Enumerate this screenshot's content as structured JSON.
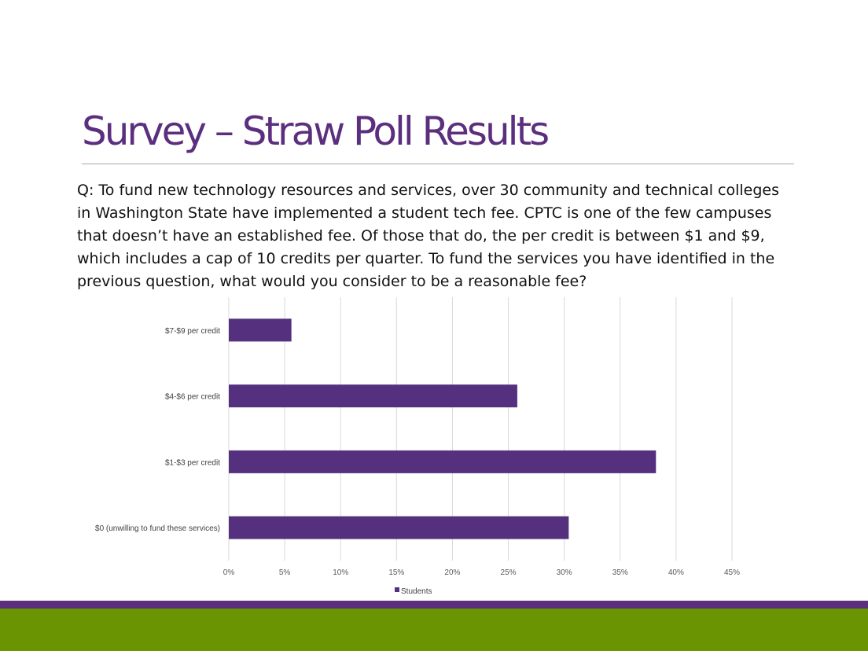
{
  "slide": {
    "title": "Survey – Straw Poll Results",
    "question": "Q: To fund new technology resources and services, over 30 community and technical colleges in Washington State have implemented a student tech fee. CPTC is one of the few campuses that doesn’t have an established fee. Of those that do, the per credit is between $1 and $9, which includes a cap of 10 credits per quarter. To fund the services you have identified in the previous question, what would you consider to be a reasonable fee?"
  },
  "colors": {
    "title": "#5b2f7e",
    "bar": "#54307f",
    "band_top": "#5b2f7e",
    "band_bottom": "#6b9402",
    "grid": "#d9d9d9"
  },
  "chart_data": {
    "type": "bar",
    "orientation": "horizontal",
    "categories": [
      "$7-$9 per credit",
      "$4-$6 per credit",
      "$1-$3 per credit",
      "$0 (unwilling to fund these services)"
    ],
    "series": [
      {
        "name": "Students",
        "values": [
          5.6,
          25.8,
          38.2,
          30.4
        ]
      }
    ],
    "xlim": [
      0,
      45
    ],
    "x_ticks": [
      "0%",
      "5%",
      "10%",
      "15%",
      "20%",
      "25%",
      "30%",
      "35%",
      "40%",
      "45%"
    ],
    "x_tick_values": [
      0,
      5,
      10,
      15,
      20,
      25,
      30,
      35,
      40,
      45
    ],
    "grid": true,
    "legend": "bottom"
  }
}
